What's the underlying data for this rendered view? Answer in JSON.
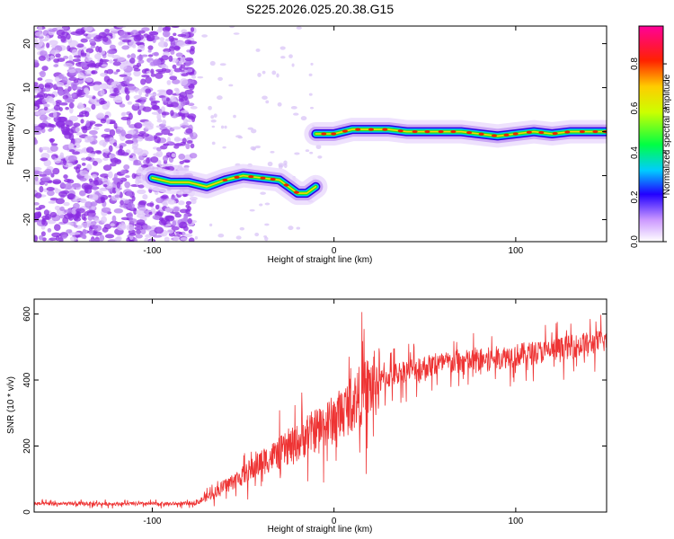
{
  "title": "S225.2026.025.20.38.G15",
  "chart_data": [
    {
      "type": "heatmap",
      "xlabel": "Height of straight line (km)",
      "ylabel": "Frequency (Hz)",
      "xlim": [
        -165,
        150
      ],
      "ylim": [
        -25,
        24
      ],
      "xticks": [
        -100,
        0,
        100
      ],
      "xtick_labels": [
        "-100",
        "0",
        "100"
      ],
      "yticks": [
        -20,
        -10,
        0,
        10,
        20
      ],
      "ytick_labels": [
        "-20",
        "-10",
        "0",
        "10",
        "20"
      ],
      "colorbar": {
        "label": "Normalized spectral amplitude",
        "range": [
          0,
          0.97
        ],
        "ticks": [
          0.0,
          0.2,
          0.4,
          0.6,
          0.8
        ],
        "tick_labels": [
          "0.0",
          "0.2",
          "0.4",
          "0.6",
          "0.8"
        ]
      },
      "ridge": [
        {
          "x": -100,
          "freq": -10.5
        },
        {
          "x": -90,
          "freq": -11.5
        },
        {
          "x": -80,
          "freq": -11.5
        },
        {
          "x": -70,
          "freq": -12.5
        },
        {
          "x": -60,
          "freq": -11
        },
        {
          "x": -50,
          "freq": -10
        },
        {
          "x": -40,
          "freq": -10.5
        },
        {
          "x": -30,
          "freq": -11
        },
        {
          "x": -20,
          "freq": -14
        },
        {
          "x": -15,
          "freq": -14
        },
        {
          "x": -10,
          "freq": -12.5
        },
        {
          "x": -10,
          "freq": -0.5
        },
        {
          "x": 0,
          "freq": -0.5
        },
        {
          "x": 10,
          "freq": 0.5
        },
        {
          "x": 20,
          "freq": 0.5
        },
        {
          "x": 30,
          "freq": 0.5
        },
        {
          "x": 40,
          "freq": 0
        },
        {
          "x": 50,
          "freq": 0
        },
        {
          "x": 60,
          "freq": 0
        },
        {
          "x": 70,
          "freq": 0
        },
        {
          "x": 80,
          "freq": -0.5
        },
        {
          "x": 90,
          "freq": -1
        },
        {
          "x": 100,
          "freq": -0.5
        },
        {
          "x": 110,
          "freq": 0
        },
        {
          "x": 120,
          "freq": -0.5
        },
        {
          "x": 130,
          "freq": 0
        },
        {
          "x": 140,
          "freq": 0
        },
        {
          "x": 150,
          "freq": 0
        }
      ]
    },
    {
      "type": "line",
      "xlabel": "Height of straight line (km)",
      "ylabel": "SNR (10 * v/v)",
      "xlim": [
        -165,
        150
      ],
      "ylim": [
        0,
        645
      ],
      "xticks": [
        -100,
        0,
        100
      ],
      "xtick_labels": [
        "-100",
        "0",
        "100"
      ],
      "yticks": [
        0,
        200,
        400,
        600
      ],
      "ytick_labels": [
        "0",
        "200",
        "400",
        "600"
      ],
      "series": [
        {
          "name": "SNR",
          "color": "#ee3333",
          "x": [
            -165,
            -140,
            -110,
            -80,
            -75,
            -70,
            -60,
            -50,
            -40,
            -30,
            -20,
            -10,
            0,
            10,
            20,
            30,
            40,
            60,
            80,
            100,
            120,
            150
          ],
          "values": [
            25,
            25,
            25,
            25,
            30,
            45,
            80,
            110,
            150,
            180,
            210,
            250,
            280,
            330,
            380,
            410,
            430,
            450,
            460,
            475,
            490,
            520
          ]
        }
      ]
    }
  ]
}
